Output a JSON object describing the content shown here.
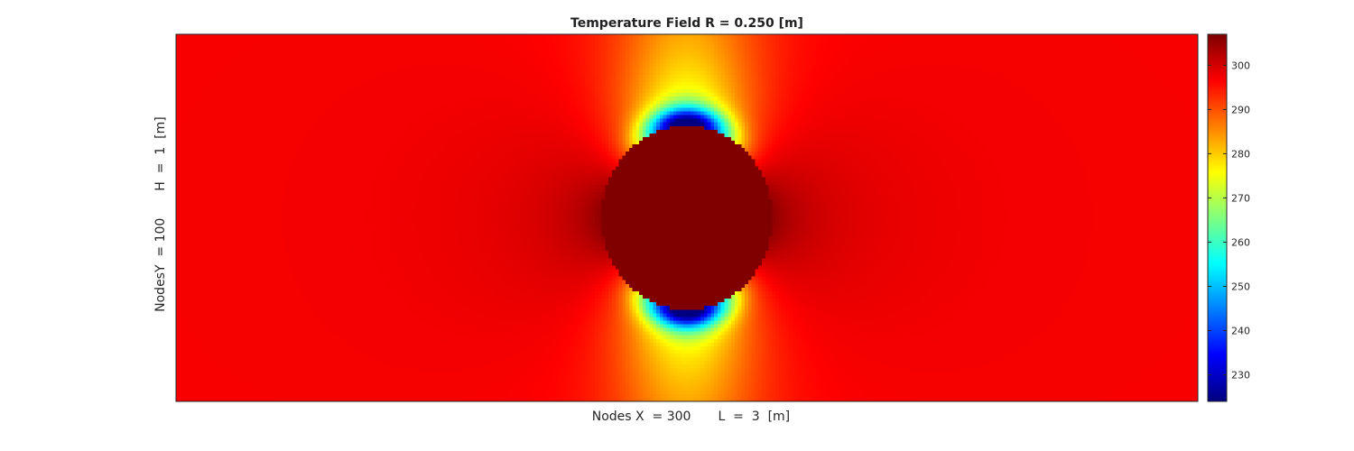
{
  "chart_data": {
    "type": "heatmap",
    "title": "Temperature Field R = 0.250 [m]",
    "xlabel": "Nodes X  = 300      L  =  3  [m]",
    "ylabel": "NodesY  = 100      H  =  1  [m]",
    "x_label_nodes": "Nodes X  = 300",
    "x_label_length": "L  =  3  [m]",
    "y_label_nodes": "NodesY  = 100",
    "y_label_length": "H  =  1  [m]",
    "grid": false,
    "colormap": "jet",
    "colorbar": {
      "placement": "right",
      "range": [
        224,
        307
      ],
      "ticks": [
        230,
        240,
        250,
        260,
        270,
        280,
        290,
        300
      ],
      "tick_labels": [
        "230",
        "240",
        "250",
        "260",
        "270",
        "280",
        "290",
        "300"
      ]
    },
    "field": {
      "domain_length": 3,
      "domain_height": 1,
      "nodes_x": 300,
      "nodes_y": 100,
      "cylinder_radius": 0.25,
      "cylinder_center": [
        1.5,
        0.5
      ],
      "cylinder_temperature": 307,
      "ambient_temperature": 297,
      "min_temperature": 224
    }
  }
}
